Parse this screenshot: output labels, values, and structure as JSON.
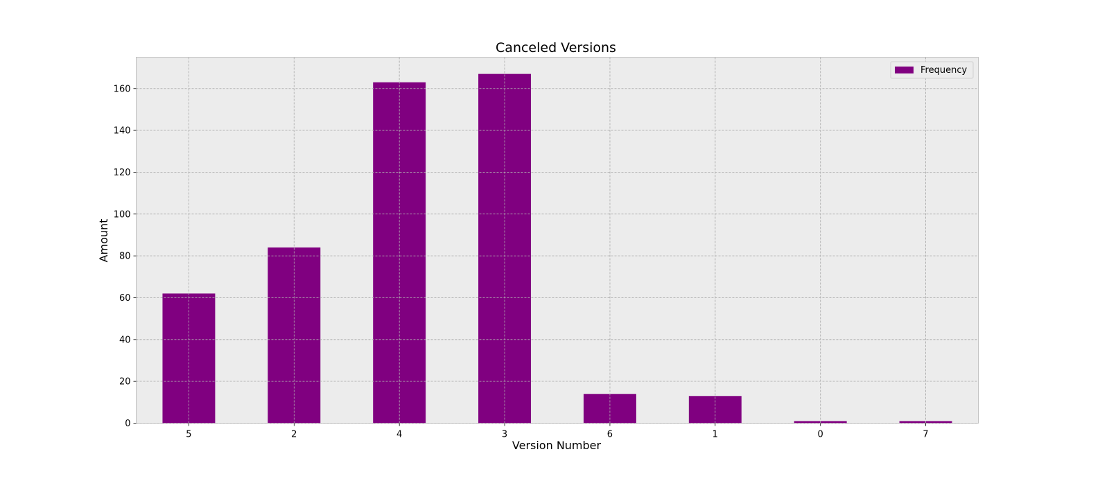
{
  "chart_data": {
    "type": "bar",
    "title": "Canceled Versions",
    "xlabel": "Version Number",
    "ylabel": "Amount",
    "categories": [
      "5",
      "2",
      "4",
      "3",
      "6",
      "1",
      "0",
      "7"
    ],
    "series": [
      {
        "name": "Frequency",
        "values": [
          62,
          84,
          163,
          167,
          14,
          13,
          1,
          1
        ]
      }
    ],
    "ylim": [
      0,
      175
    ],
    "yticks": [
      0,
      20,
      40,
      60,
      80,
      100,
      120,
      140,
      160
    ],
    "grid": true,
    "legend_position": "top-right",
    "colors": {
      "bar": "#800080",
      "plot_background": "#ececec"
    }
  }
}
